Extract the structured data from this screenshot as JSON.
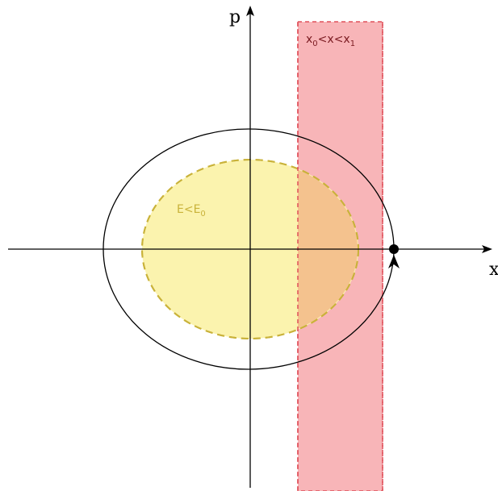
{
  "axes": {
    "x_label": "x",
    "y_label": "p"
  },
  "regions": {
    "energy": {
      "label_main": "E<E",
      "label_sub": "0",
      "fill_color": "#fbf3ae",
      "stroke_color": "#c9b23a"
    },
    "position": {
      "label_x0": "x",
      "label_sub0": "0",
      "label_mid": "<x<x",
      "label_sub1": "1",
      "fill_color": "#f8b5b8",
      "stroke_color": "#e0505a",
      "text_color": "#7a1a20"
    },
    "overlap": {
      "fill_color": "#f4c28e"
    }
  },
  "orbit": {
    "stroke_color": "#000000",
    "marker": "filled-dot",
    "direction": "counterclockwise-arrow"
  }
}
